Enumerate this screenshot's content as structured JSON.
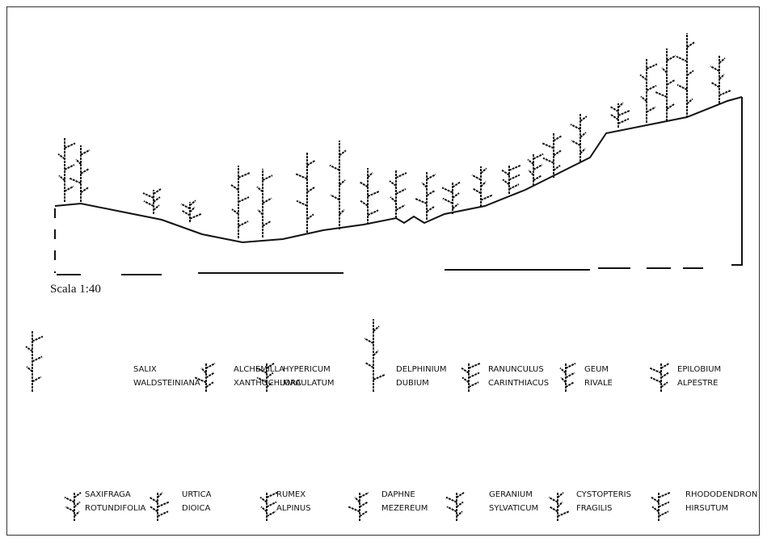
{
  "scale": "Scala 1:40",
  "legend": [
    {
      "lines": [
        "SALIX",
        "WALDSTEINIANA"
      ]
    },
    {
      "lines": [
        "ALCHEMILLA",
        "XANTHOCHLORA"
      ]
    },
    {
      "lines": [
        "HYPERICUM",
        "MACULATUM"
      ]
    },
    {
      "lines": [
        "DELPHINIUM",
        "DUBIUM"
      ]
    },
    {
      "lines": [
        "RANUNCULUS",
        "CARINTHIACUS"
      ]
    },
    {
      "lines": [
        "GEUM",
        "RIVALE"
      ]
    },
    {
      "lines": [
        "EPILOBIUM",
        "ALPESTRE"
      ]
    },
    {
      "lines": [
        "SAXIFRAGA",
        "ROTUNDIFOLIA"
      ]
    },
    {
      "lines": [
        "URTICA",
        "DIOICA"
      ]
    },
    {
      "lines": [
        "RUMEX",
        "ALPINUS"
      ]
    },
    {
      "lines": [
        "DAPHNE",
        "MEZEREUM"
      ]
    },
    {
      "lines": [
        "GERANIUM",
        "SYLVATICUM"
      ]
    },
    {
      "lines": [
        "CYSTOPTERIS",
        "FRAGILIS"
      ]
    },
    {
      "lines": [
        "RHODODENDRON",
        "HIRSUTUM"
      ]
    }
  ]
}
